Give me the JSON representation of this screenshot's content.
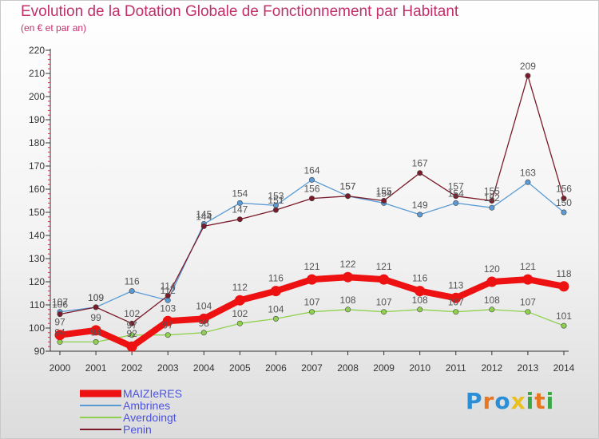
{
  "chart_data": {
    "type": "line",
    "title": "Evolution de la Dotation Globale de Fonctionnement par Habitant",
    "subtitle": "(en € et par an)",
    "xlabel": "",
    "ylabel": "",
    "x": [
      "2000",
      "2001",
      "2002",
      "2003",
      "2004",
      "2005",
      "2006",
      "2007",
      "2008",
      "2009",
      "2010",
      "2011",
      "2012",
      "2013",
      "2014"
    ],
    "ylim": [
      90,
      220
    ],
    "yticks": [
      90,
      100,
      110,
      120,
      130,
      140,
      150,
      160,
      170,
      180,
      190,
      200,
      210,
      220
    ],
    "grid": false,
    "legend_position": "bottom-left",
    "series": [
      {
        "name": "MAIZIeRES",
        "color": "#ee1111",
        "values": [
          97,
          99,
          92,
          103,
          104,
          112,
          116,
          121,
          122,
          121,
          116,
          113,
          120,
          121,
          118
        ]
      },
      {
        "name": "Ambrines",
        "color": "#5b9bd5",
        "values": [
          107,
          109,
          116,
          112,
          145,
          154,
          153,
          164,
          157,
          154,
          149,
          154,
          152,
          163,
          150
        ]
      },
      {
        "name": "Averdoingt",
        "color": "#8fd14f",
        "values": [
          94,
          94,
          97,
          97,
          98,
          102,
          104,
          107,
          108,
          107,
          108,
          107,
          108,
          107,
          101
        ]
      },
      {
        "name": "Penin",
        "color": "#7a1a2a",
        "values": [
          106,
          109,
          102,
          114,
          144,
          147,
          151,
          156,
          157,
          155,
          167,
          157,
          155,
          209,
          156
        ]
      }
    ]
  },
  "logo": {
    "letters": [
      {
        "ch": "P",
        "color": "#2a8fd6"
      },
      {
        "ch": "r",
        "color": "#e87722"
      },
      {
        "ch": "o",
        "color": "#2a8fd6"
      },
      {
        "ch": "x",
        "color": "#e8c020"
      },
      {
        "ch": "i",
        "color": "#3aa845"
      },
      {
        "ch": "t",
        "color": "#e87722"
      },
      {
        "ch": "i",
        "color": "#3aa845"
      }
    ]
  }
}
